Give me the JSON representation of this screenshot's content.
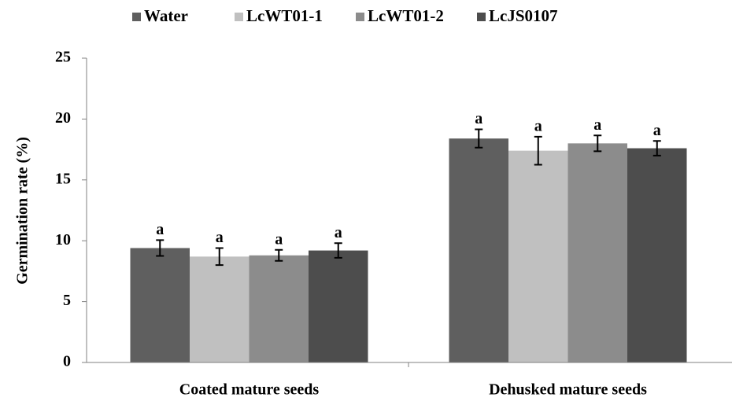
{
  "chart_data": {
    "type": "bar",
    "y_label": "Germination rate (%)",
    "categories": [
      "Coated mature seeds",
      "Dehusked mature seeds"
    ],
    "series": [
      {
        "name": "Water",
        "color": "#5f5f5f",
        "values": [
          9.4,
          18.4
        ],
        "errors": [
          0.65,
          0.75
        ],
        "labels": [
          "a",
          "a"
        ]
      },
      {
        "name": "LcWT01-1",
        "color": "#c0c0c0",
        "values": [
          8.7,
          17.4
        ],
        "errors": [
          0.7,
          1.15
        ],
        "labels": [
          "a",
          "a"
        ]
      },
      {
        "name": "LcWT01-2",
        "color": "#8c8c8c",
        "values": [
          8.8,
          18.0
        ],
        "errors": [
          0.45,
          0.65
        ],
        "labels": [
          "a",
          "a"
        ]
      },
      {
        "name": "LcJS0107",
        "color": "#4d4d4d",
        "values": [
          9.2,
          17.6
        ],
        "errors": [
          0.6,
          0.6
        ],
        "labels": [
          "a",
          "a"
        ]
      }
    ],
    "ylim": [
      0,
      25
    ],
    "yticks": [
      0,
      5,
      10,
      15,
      20,
      25
    ],
    "legend": "top"
  }
}
